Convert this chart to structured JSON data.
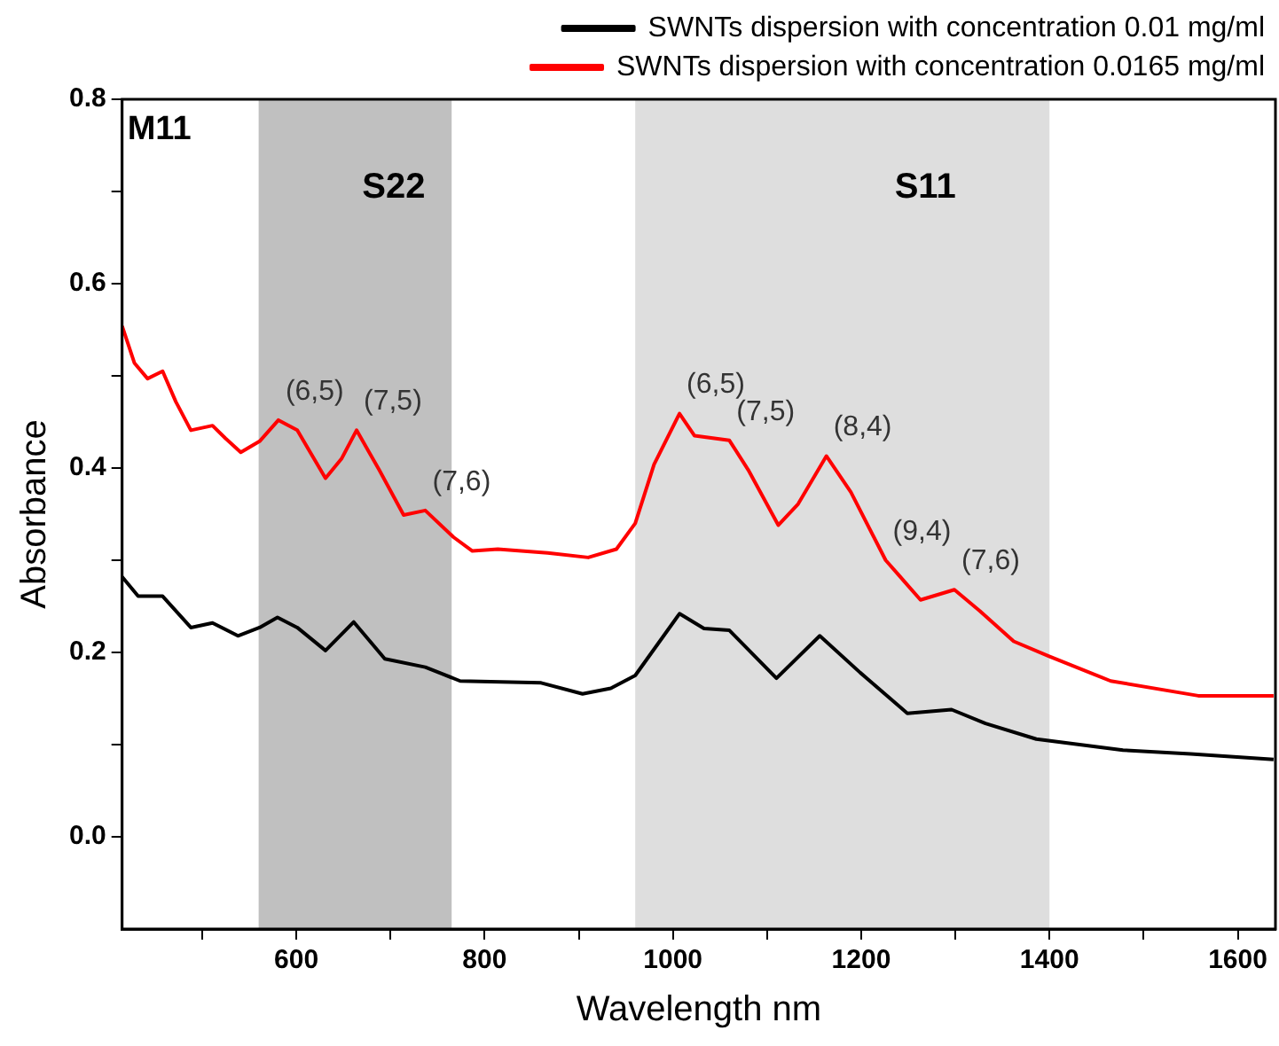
{
  "chart_data": {
    "type": "line",
    "xlabel": "Wavelength nm",
    "ylabel": "Absorbance",
    "xlim": [
      415,
      1640
    ],
    "ylim": [
      -0.1,
      0.8
    ],
    "xticks": [
      {
        "value": 500,
        "label": null
      },
      600,
      {
        "value": 700,
        "label": null
      },
      800,
      {
        "value": 900,
        "label": null
      },
      1000,
      {
        "value": 1100,
        "label": null
      },
      1200,
      {
        "value": 1300,
        "label": null
      },
      1400,
      {
        "value": 1500,
        "label": null
      },
      1600
    ],
    "yticks": [
      {
        "value": 0,
        "label": "0.0"
      },
      {
        "value": 0.1,
        "label": null
      },
      {
        "value": 0.2,
        "label": "0.2"
      },
      {
        "value": 0.3,
        "label": null
      },
      {
        "value": 0.4,
        "label": "0.4"
      },
      {
        "value": 0.5,
        "label": null
      },
      {
        "value": 0.6,
        "label": "0.6"
      },
      {
        "value": 0.7,
        "label": null
      },
      {
        "value": 0.8,
        "label": "0.8"
      }
    ],
    "grid": false,
    "legend": "top",
    "marker": "none",
    "line_style": "solid",
    "series": [
      {
        "name": "SWNTs dispersion with concentration 0.01 mg/ml",
        "color": "#000000",
        "x": [
          415,
          432,
          458,
          488,
          511,
          538,
          561,
          580,
          601,
          631,
          661,
          694,
          737,
          774,
          860,
          904,
          934,
          960,
          1007,
          1033,
          1060,
          1110,
          1156,
          1199,
          1249,
          1296,
          1332,
          1386,
          1478,
          1550,
          1638
        ],
        "values": [
          0.282,
          0.261,
          0.261,
          0.227,
          0.232,
          0.218,
          0.227,
          0.238,
          0.227,
          0.202,
          0.233,
          0.193,
          0.184,
          0.169,
          0.167,
          0.155,
          0.161,
          0.175,
          0.242,
          0.226,
          0.224,
          0.172,
          0.218,
          0.178,
          0.134,
          0.138,
          0.123,
          0.106,
          0.094,
          0.09,
          0.084
        ]
      },
      {
        "name": "SWNTs dispersion with concentration 0.0165 mg/ml",
        "color": "#ff0000",
        "x": [
          415,
          428,
          442,
          458,
          472,
          488,
          511,
          525,
          541,
          561,
          581,
          601,
          631,
          648,
          664,
          688,
          714,
          737,
          767,
          787,
          814,
          867,
          910,
          940,
          960,
          980,
          1007,
          1023,
          1060,
          1080,
          1112,
          1133,
          1163,
          1189,
          1226,
          1263,
          1299,
          1326,
          1362,
          1399,
          1465,
          1558,
          1638
        ],
        "values": [
          0.554,
          0.514,
          0.497,
          0.505,
          0.472,
          0.441,
          0.446,
          0.432,
          0.417,
          0.429,
          0.452,
          0.441,
          0.389,
          0.41,
          0.441,
          0.398,
          0.349,
          0.354,
          0.325,
          0.31,
          0.312,
          0.308,
          0.303,
          0.312,
          0.34,
          0.404,
          0.459,
          0.435,
          0.43,
          0.398,
          0.338,
          0.361,
          0.413,
          0.374,
          0.3,
          0.257,
          0.268,
          0.245,
          0.212,
          0.196,
          0.169,
          0.153,
          0.153
        ]
      }
    ],
    "bands": [
      {
        "axis": "x",
        "from": 560,
        "to": 765,
        "label": "S22",
        "color": "#c0c0c0"
      },
      {
        "axis": "x",
        "from": 960,
        "to": 1400,
        "label": "S11",
        "color": "#dedede"
      }
    ],
    "annotations": [
      "M11",
      {
        "text": "(6,5)",
        "x": 581,
        "y": 0.452
      },
      {
        "text": "(7,5)",
        "x": 664,
        "y": 0.441
      },
      {
        "text": "(7,6)",
        "x": 737,
        "y": 0.354
      },
      {
        "text": "(6,5)",
        "x": 1007,
        "y": 0.459
      },
      {
        "text": "(7,5)",
        "x": 1060,
        "y": 0.43
      },
      {
        "text": "(8,4)",
        "x": 1163,
        "y": 0.413
      },
      {
        "text": "(9,4)",
        "x": 1226,
        "y": 0.3
      },
      {
        "text": "(7,6)",
        "x": 1299,
        "y": 0.268
      }
    ]
  }
}
